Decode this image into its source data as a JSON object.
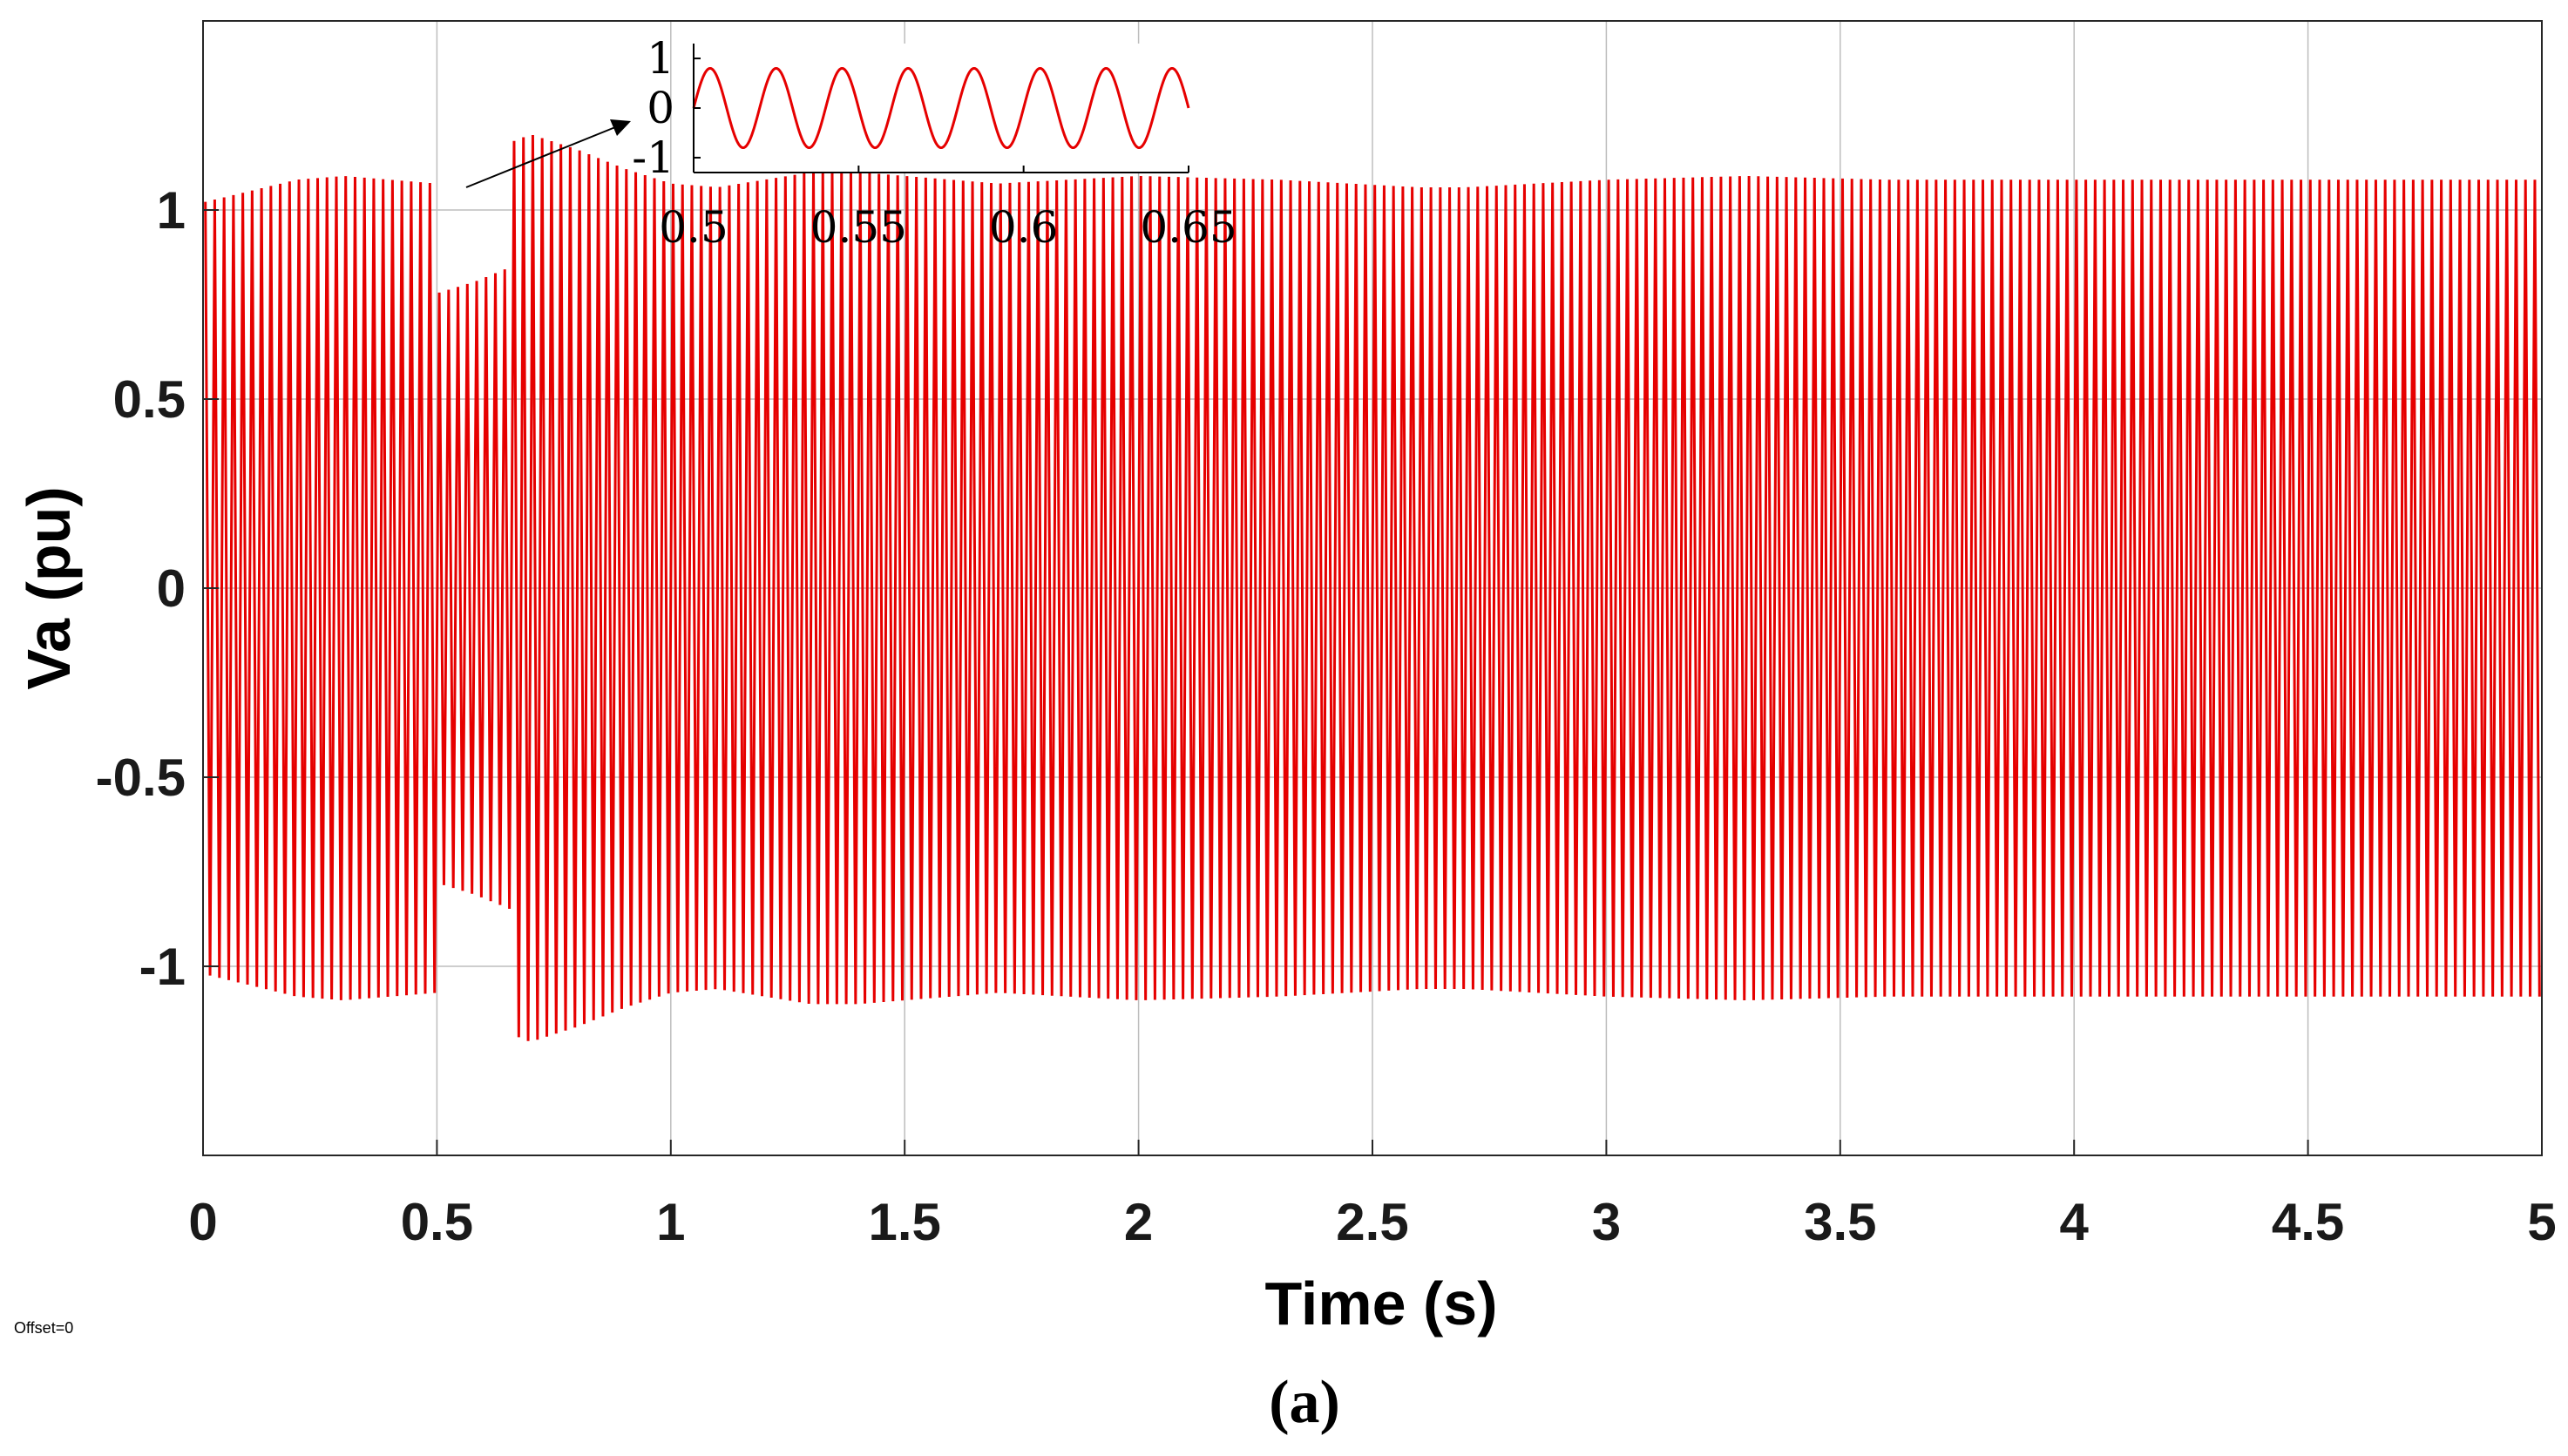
{
  "chart_data": [
    {
      "type": "line",
      "role": "main",
      "xlabel": "Time (s)",
      "ylabel": "Va (pu)",
      "xlim": [
        0,
        5
      ],
      "ylim": [
        -1.5,
        1.5
      ],
      "xticks": [
        0,
        0.5,
        1,
        1.5,
        2,
        2.5,
        3,
        3.5,
        4,
        4.5,
        5
      ],
      "xtick_labels": [
        "0",
        "0.5",
        "1",
        "1.5",
        "2",
        "2.5",
        "3",
        "3.5",
        "4",
        "4.5",
        "5"
      ],
      "yticks": [
        1,
        0.5,
        0,
        -0.5,
        -1
      ],
      "ytick_labels": [
        "1",
        "0.5",
        "0",
        "-0.5",
        "-1"
      ],
      "grid": true,
      "color": "#e60000",
      "waveform": "sinusoid",
      "frequency_hz": 50,
      "series": [
        {
          "envelope_t": [
            0,
            0.1,
            0.2,
            0.3,
            0.4,
            0.5,
            0.501,
            0.58,
            0.659,
            0.66,
            0.7,
            0.8,
            0.9,
            1.0,
            1.1,
            1.2,
            1.3,
            1.4,
            1.5,
            1.7,
            2.0,
            2.3,
            2.6,
            2.7,
            3.0,
            3.3,
            3.6,
            4.0,
            4.5,
            5.0
          ],
          "envelope_amp": [
            1.02,
            1.05,
            1.08,
            1.09,
            1.08,
            1.07,
            0.78,
            0.81,
            0.85,
            1.18,
            1.2,
            1.16,
            1.11,
            1.07,
            1.06,
            1.08,
            1.1,
            1.1,
            1.09,
            1.07,
            1.09,
            1.08,
            1.06,
            1.06,
            1.08,
            1.09,
            1.08,
            1.08,
            1.08,
            1.08
          ]
        }
      ]
    },
    {
      "type": "line",
      "role": "inset",
      "xlim": [
        0.5,
        0.65
      ],
      "ylim": [
        -1.3,
        1.3
      ],
      "xticks": [
        0.5,
        0.55,
        0.6,
        0.65
      ],
      "xtick_labels": [
        "0.5",
        "0.55",
        "0.6",
        "0.65"
      ],
      "yticks": [
        1,
        0,
        -1
      ],
      "ytick_labels": [
        "1",
        "0",
        "-1"
      ],
      "color": "#e60000",
      "amplitude": 0.8,
      "frequency_hz": 50
    }
  ],
  "offset_label": "Offset=0",
  "caption": "(a)"
}
